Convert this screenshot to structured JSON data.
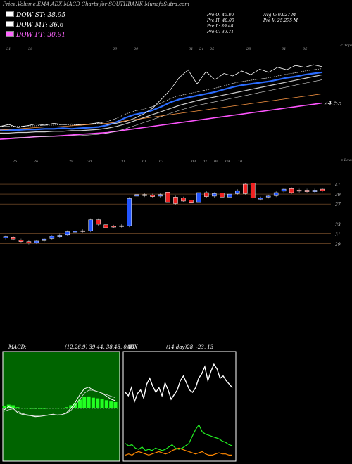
{
  "page": {
    "title": "Price,Volume,EMA,ADX,MACD Charts for SOUTHBANK MunafaSutra.com"
  },
  "legend": [
    {
      "label": "DOW ST: 38.95",
      "color": "#ffffff"
    },
    {
      "label": "DOW MT: 36.6",
      "color": "#ffffff"
    },
    {
      "label": "DOW PT: 30.91",
      "color": "#ff66ff"
    }
  ],
  "stats": {
    "open": "Pre  O: 40.00",
    "high": "Pre  H: 40.00",
    "low": "Pre  L: 39.48",
    "close": "Pre  C: 39.71",
    "avg_vol": "Avg V: 0.927 M",
    "vol": "Pre  V: 25.275 M"
  },
  "top_panel": {
    "date_labels_top": [
      "31",
      "30",
      "29",
      "29",
      "31",
      "24",
      "25",
      "28",
      "01",
      "06"
    ],
    "date_labels_bottom": [
      "25",
      "26",
      "29",
      "30",
      "31",
      "01",
      "02",
      "03",
      "07",
      "08",
      "09",
      "10"
    ],
    "corner_top": "< Tops",
    "corner_bottom": "< Lows",
    "price_label": "24.55"
  },
  "chart_data": [
    {
      "type": "line",
      "title": "",
      "series": [
        {
          "name": "",
          "values": [
            22,
            22,
            22,
            22.1,
            22.1,
            22.2,
            22.2,
            22.3,
            22.2,
            22.3,
            22.4,
            22.5,
            22.8,
            23.3,
            24.0,
            24.5,
            24.8,
            25.2,
            25.8,
            26.5,
            27,
            27.3,
            27.6,
            27.9,
            28.2,
            28.6,
            29,
            29.3,
            29.5,
            29.7,
            29.9,
            30.2,
            30.5,
            30.7,
            31,
            31.2,
            31.4
          ]
        },
        {
          "name": "",
          "values": [
            21.5,
            21.5,
            21.6,
            21.6,
            21.7,
            21.7,
            21.8,
            21.8,
            21.9,
            21.9,
            22,
            22.1,
            22.3,
            22.6,
            23,
            23.5,
            24,
            24.5,
            25,
            25.5,
            26,
            26.4,
            26.8,
            27.1,
            27.4,
            27.7,
            28,
            28.3,
            28.6,
            28.9,
            29.2,
            29.5,
            29.8,
            30.1,
            30.4,
            30.7,
            31
          ]
        },
        {
          "name": "",
          "values": [
            20.5,
            20.6,
            20.7,
            20.8,
            20.9,
            21,
            21,
            21.1,
            21.2,
            21.3,
            21.4,
            21.5,
            21.6,
            21.8,
            22,
            22.2,
            22.4,
            22.6,
            22.8,
            23,
            23.2,
            23.4,
            23.6,
            23.8,
            24,
            24.2,
            24.4,
            24.6,
            24.8,
            25,
            25.2,
            25.4,
            25.6,
            25.8,
            26,
            26.2,
            26.4
          ]
        }
      ]
    },
    {
      "type": "bar",
      "title": "",
      "price_ticks": [
        "41",
        "39",
        "37",
        "33",
        "31",
        "29"
      ],
      "candles": [
        {
          "o": 30.1,
          "c": 30.4
        },
        {
          "o": 30.3,
          "c": 29.9
        },
        {
          "o": 29.7,
          "c": 29.4
        },
        {
          "o": 29.4,
          "c": 29.1
        },
        {
          "o": 29.2,
          "c": 29.5
        },
        {
          "o": 29.6,
          "c": 29.9
        },
        {
          "o": 30.0,
          "c": 30.5
        },
        {
          "o": 30.4,
          "c": 30.7
        },
        {
          "o": 30.8,
          "c": 31.4
        },
        {
          "o": 31.4,
          "c": 31.5
        },
        {
          "o": 31.6,
          "c": 31.5
        },
        {
          "o": 31.6,
          "c": 33.8
        },
        {
          "o": 33.8,
          "c": 32.9
        },
        {
          "o": 32.8,
          "c": 32.2
        },
        {
          "o": 32.5,
          "c": 32.4
        },
        {
          "o": 32.6,
          "c": 32.5
        },
        {
          "o": 32.6,
          "c": 38.1
        },
        {
          "o": 38.6,
          "c": 38.9
        },
        {
          "o": 38.9,
          "c": 38.7
        },
        {
          "o": 38.8,
          "c": 38.5
        },
        {
          "o": 38.6,
          "c": 38.9
        },
        {
          "o": 39.4,
          "c": 37.3
        },
        {
          "o": 38.4,
          "c": 37.1
        },
        {
          "o": 38.2,
          "c": 37.6
        },
        {
          "o": 37.8,
          "c": 37.2
        },
        {
          "o": 37.3,
          "c": 39.3
        },
        {
          "o": 39.3,
          "c": 38.5
        },
        {
          "o": 38.6,
          "c": 39.1
        },
        {
          "o": 39.2,
          "c": 38.4
        },
        {
          "o": 38.4,
          "c": 39.0
        },
        {
          "o": 39.1,
          "c": 39.7
        },
        {
          "o": 41.0,
          "c": 39.1
        },
        {
          "o": 41.2,
          "c": 38.2
        },
        {
          "o": 38.0,
          "c": 38.2
        },
        {
          "o": 38.4,
          "c": 38.6
        },
        {
          "o": 38.7,
          "c": 39.3
        },
        {
          "o": 39.6,
          "c": 40.0
        },
        {
          "o": 40.1,
          "c": 39.3
        },
        {
          "o": 39.8,
          "c": 39.6
        },
        {
          "o": 39.8,
          "c": 39.5
        },
        {
          "o": 39.5,
          "c": 39.8
        },
        {
          "o": 40.0,
          "c": 39.7
        }
      ]
    },
    {
      "type": "line",
      "title": "MACD",
      "label": "MACD:",
      "params": "(12,26,9) 39.44, 38.48, 0.96",
      "series": [
        {
          "name": "",
          "values": [
            2,
            3,
            2.5,
            1,
            0.5,
            0.2,
            0,
            -0.3,
            -0.2,
            0,
            0.3,
            0.5,
            0.2,
            0.4,
            1,
            2.5,
            4.5,
            7,
            9,
            9.5,
            8.5,
            8,
            7.5,
            6.5,
            5.5,
            5
          ]
        },
        {
          "name": "",
          "values": [
            1.5,
            2,
            2.3,
            1.5,
            0.8,
            0.4,
            0.1,
            -0.1,
            -0.1,
            0,
            0.2,
            0.4,
            0.3,
            0.4,
            0.8,
            1.8,
            3.5,
            5.5,
            7.5,
            8.5,
            8.5,
            8,
            7.5,
            7,
            6.5,
            6
          ]
        }
      ]
    },
    {
      "type": "line",
      "title": "ADX",
      "label": "ADX",
      "params": "(14 day)28, -23, 13",
      "series": [
        {
          "name": "",
          "values": [
            58,
            55,
            62,
            50,
            57,
            60,
            53,
            65,
            70,
            63,
            58,
            62,
            55,
            66,
            60,
            52,
            56,
            60,
            68,
            72,
            66,
            60,
            58,
            62,
            70,
            74,
            80,
            68,
            76,
            82,
            78,
            70,
            72,
            68,
            65,
            62
          ]
        },
        {
          "name": "",
          "values": [
            14,
            12,
            13,
            10,
            9,
            11,
            8,
            9,
            8,
            10,
            9,
            8,
            9,
            11,
            13,
            10,
            9,
            10,
            12,
            14,
            20,
            26,
            30,
            24,
            22,
            21,
            20,
            19,
            18,
            16,
            15,
            13,
            12
          ]
        },
        {
          "name": "",
          "values": [
            4,
            5,
            4,
            6,
            7,
            6,
            5,
            4,
            5,
            6,
            7,
            6,
            5,
            6,
            8,
            9,
            10,
            9,
            8,
            7,
            6,
            5,
            6,
            7,
            5,
            4,
            4,
            5,
            6,
            5,
            5,
            4,
            4
          ]
        }
      ]
    }
  ]
}
